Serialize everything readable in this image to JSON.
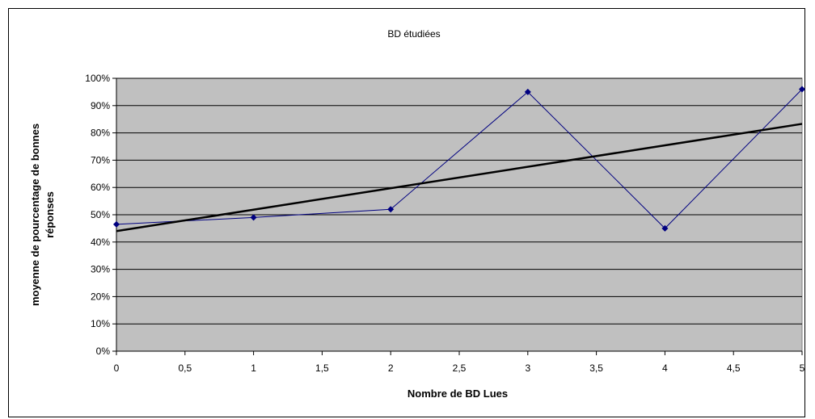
{
  "chart_data": {
    "type": "line",
    "title": "BD étudiées",
    "xlabel": "Nombre de BD Lues",
    "ylabel_lines": [
      "moyenne de pourcentage de bonnes",
      "réponses"
    ],
    "xlim": [
      0,
      5
    ],
    "ylim": [
      0,
      100
    ],
    "x_ticks": [
      "0",
      "0,5",
      "1",
      "1,5",
      "2",
      "2,5",
      "3",
      "3,5",
      "4",
      "4,5",
      "5"
    ],
    "y_ticks": [
      "0%",
      "10%",
      "20%",
      "30%",
      "40%",
      "50%",
      "60%",
      "70%",
      "80%",
      "90%",
      "100%"
    ],
    "grid": true,
    "series": [
      {
        "x": [
          0,
          1,
          2,
          3,
          4,
          5
        ],
        "y": [
          46.5,
          49,
          52,
          95,
          45,
          96
        ],
        "color": "#000080",
        "marker": "diamond"
      }
    ],
    "trendline": {
      "x": [
        0,
        5
      ],
      "y": [
        44,
        83.3
      ],
      "color": "#000000"
    },
    "plot_background": "#c0c0c0"
  }
}
